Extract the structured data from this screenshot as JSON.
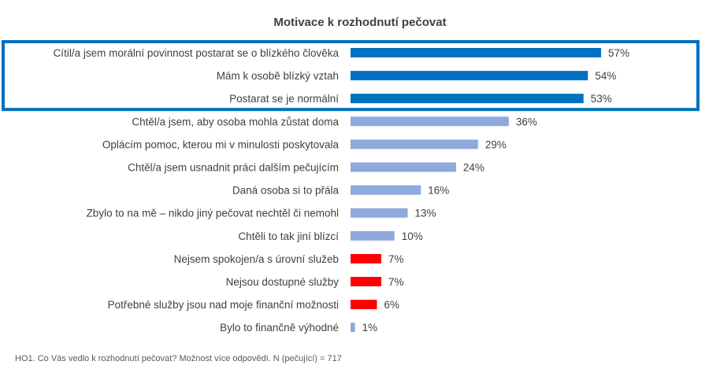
{
  "chart_data": {
    "type": "bar",
    "orientation": "horizontal",
    "title": "Motivace k rozhodnutí pečovat",
    "categories": [
      "Cítil/a jsem morální povinnost postarat se o blízkého člověka",
      "Mám k osobě blízký vztah",
      "Postarat se je normální",
      "Chtěl/a jsem, aby osoba mohla zůstat doma",
      "Oplácím pomoc, kterou mi v minulosti poskytovala",
      "Chtěl/a jsem usnadnit práci dalším pečujícím",
      "Daná osoba si to přála",
      "Zbylo to na mě – nikdo jiný pečovat nechtěl či nemohl",
      "Chtěli to tak jiní blízcí",
      "Nejsem spokojen/a s úrovní služeb",
      "Nejsou dostupné služby",
      "Potřebné služby jsou nad moje finanční možnosti",
      "Bylo to finančně výhodné"
    ],
    "values": [
      57,
      54,
      53,
      36,
      29,
      24,
      16,
      13,
      10,
      7,
      7,
      6,
      1
    ],
    "value_labels": [
      "57%",
      "54%",
      "53%",
      "36%",
      "29%",
      "24%",
      "16%",
      "13%",
      "10%",
      "7%",
      "7%",
      "6%",
      "1%"
    ],
    "bar_colors": [
      "#0070C0",
      "#0070C0",
      "#0070C0",
      "#8EA9DB",
      "#8EA9DB",
      "#8EA9DB",
      "#8EA9DB",
      "#8EA9DB",
      "#8EA9DB",
      "#FF0000",
      "#FF0000",
      "#FF0000",
      "#8EA9DB"
    ],
    "highlight_box": {
      "first_index": 0,
      "last_index": 2,
      "color": "#0070C0"
    },
    "xlim": [
      0,
      100
    ],
    "grid": false,
    "legend": "none",
    "footnote": "HO1. Co Vás vedlo k rozhodnutí pečovat? Možnost více odpovědí. N (pečující) = 717"
  }
}
